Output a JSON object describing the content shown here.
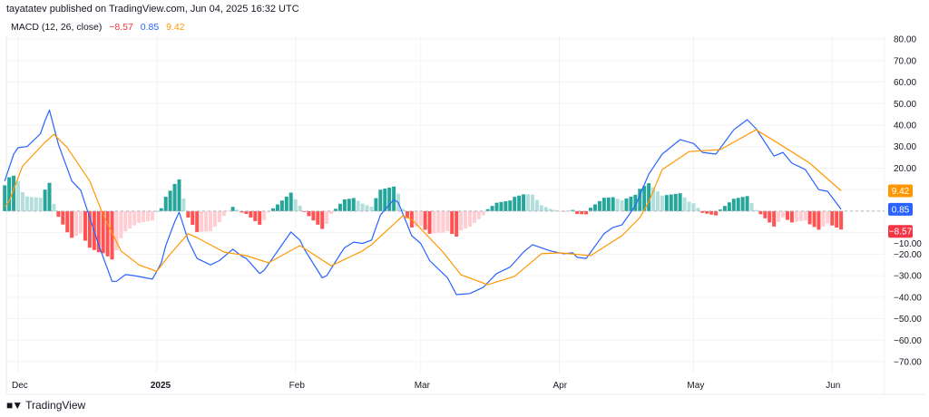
{
  "header": {
    "published": "tayatatev published on TradingView.com, Jun 04, 2025 16:32 UTC"
  },
  "legend": {
    "indicator": "MACD (12, 26, close)",
    "histogram_value": "−8.57",
    "macd_value": "0.85",
    "signal_value": "9.42"
  },
  "brand": {
    "logo_text": "TV",
    "name": "TradingView"
  },
  "chart_data": {
    "type": "line",
    "title": "MACD (12, 26, close)",
    "ylim": [
      -70,
      80
    ],
    "y_ticks": [
      "80.00",
      "70.00",
      "60.00",
      "50.00",
      "40.00",
      "30.00",
      "20.00",
      "−10.00",
      "−20.00",
      "−30.00",
      "−40.00",
      "−50.00",
      "−60.00",
      "−70.00"
    ],
    "y_tick_values": [
      80,
      70,
      60,
      50,
      40,
      30,
      20,
      -10,
      -20,
      -30,
      -40,
      -50,
      -60,
      -70
    ],
    "x_ticks": [
      {
        "label": "Dec",
        "date": "2024-12-01",
        "bold": false
      },
      {
        "label": "2025",
        "date": "2025-01-01",
        "bold": true
      },
      {
        "label": "Feb",
        "date": "2025-02-01",
        "bold": false
      },
      {
        "label": "Mar",
        "date": "2025-03-01",
        "bold": false
      },
      {
        "label": "Apr",
        "date": "2025-04-01",
        "bold": false
      },
      {
        "label": "May",
        "date": "2025-05-01",
        "bold": false
      },
      {
        "label": "Jun",
        "date": "2025-06-01",
        "bold": false
      }
    ],
    "grid": true,
    "zero_line": "dashed",
    "series": [
      {
        "key": "macd",
        "color": "#2962ff",
        "points": [
          [
            "2024-11-28",
            14
          ],
          [
            "2024-11-30",
            26.5
          ],
          [
            "2024-12-01",
            29.5
          ],
          [
            "2024-12-03",
            30
          ],
          [
            "2024-12-06",
            36
          ],
          [
            "2024-12-07",
            42
          ],
          [
            "2024-12-08",
            47
          ],
          [
            "2024-12-10",
            31
          ],
          [
            "2024-12-13",
            14
          ],
          [
            "2024-12-15",
            9.7
          ],
          [
            "2024-12-17",
            -3
          ],
          [
            "2024-12-19",
            -15.6
          ],
          [
            "2024-12-22",
            -32.6
          ],
          [
            "2024-12-23",
            -32.6
          ],
          [
            "2024-12-25",
            -29.5
          ],
          [
            "2024-12-27",
            -30
          ],
          [
            "2024-12-31",
            -31.6
          ],
          [
            "2025-01-01",
            -28
          ],
          [
            "2025-01-02",
            -24
          ],
          [
            "2025-01-03",
            -16
          ],
          [
            "2025-01-05",
            -5
          ],
          [
            "2025-01-06",
            -0.5
          ],
          [
            "2025-01-08",
            -13.5
          ],
          [
            "2025-01-10",
            -22
          ],
          [
            "2025-01-13",
            -25
          ],
          [
            "2025-01-15",
            -23
          ],
          [
            "2025-01-18",
            -17.7
          ],
          [
            "2025-01-20",
            -21
          ],
          [
            "2025-01-21",
            -22
          ],
          [
            "2025-01-24",
            -29
          ],
          [
            "2025-01-25",
            -27.5
          ],
          [
            "2025-01-31",
            -9.7
          ],
          [
            "2025-02-02",
            -13.5
          ],
          [
            "2025-02-03",
            -17.7
          ],
          [
            "2025-02-07",
            -31
          ],
          [
            "2025-02-08",
            -30
          ],
          [
            "2025-02-11",
            -20
          ],
          [
            "2025-02-12",
            -17
          ],
          [
            "2025-02-14",
            -14.4
          ],
          [
            "2025-02-16",
            -15
          ],
          [
            "2025-02-18",
            -13.5
          ],
          [
            "2025-02-20",
            -1.8
          ],
          [
            "2025-02-23",
            5.4
          ],
          [
            "2025-02-24",
            4
          ],
          [
            "2025-02-27",
            -11.4
          ],
          [
            "2025-03-01",
            -15
          ],
          [
            "2025-03-03",
            -23
          ],
          [
            "2025-03-06",
            -29
          ],
          [
            "2025-03-07",
            -31
          ],
          [
            "2025-03-09",
            -38.8
          ],
          [
            "2025-03-12",
            -38.3
          ],
          [
            "2025-03-15",
            -35.4
          ],
          [
            "2025-03-18",
            -29
          ],
          [
            "2025-03-21",
            -26
          ],
          [
            "2025-03-24",
            -19
          ],
          [
            "2025-03-26",
            -15.6
          ],
          [
            "2025-03-30",
            -18.5
          ],
          [
            "2025-04-02",
            -19.8
          ],
          [
            "2025-04-04",
            -19.4
          ],
          [
            "2025-04-05",
            -21.5
          ],
          [
            "2025-04-07",
            -22
          ],
          [
            "2025-04-11",
            -10.5
          ],
          [
            "2025-04-13",
            -7.6
          ],
          [
            "2025-04-15",
            -6.4
          ],
          [
            "2025-04-18",
            2.5
          ],
          [
            "2025-04-21",
            17.2
          ],
          [
            "2025-04-24",
            26.5
          ],
          [
            "2025-04-28",
            33.2
          ],
          [
            "2025-05-01",
            31.5
          ],
          [
            "2025-05-03",
            27.3
          ],
          [
            "2025-05-06",
            26.5
          ],
          [
            "2025-05-10",
            37.8
          ],
          [
            "2025-05-13",
            42.5
          ],
          [
            "2025-05-15",
            38.3
          ],
          [
            "2025-05-19",
            25.6
          ],
          [
            "2025-05-21",
            27.3
          ],
          [
            "2025-05-23",
            22.3
          ],
          [
            "2025-05-26",
            19.3
          ],
          [
            "2025-05-29",
            10
          ],
          [
            "2025-05-31",
            9.2
          ],
          [
            "2025-06-03",
            0.85
          ]
        ]
      },
      {
        "key": "signal",
        "color": "#ff9800",
        "points": [
          [
            "2024-11-28",
            2
          ],
          [
            "2024-11-29",
            4.5
          ],
          [
            "2024-12-02",
            21
          ],
          [
            "2024-12-07",
            32
          ],
          [
            "2024-12-09",
            35.7
          ],
          [
            "2024-12-12",
            29.5
          ],
          [
            "2024-12-17",
            14
          ],
          [
            "2024-12-20",
            -1.7
          ],
          [
            "2024-12-24",
            -18.5
          ],
          [
            "2024-12-28",
            -25
          ],
          [
            "2025-01-01",
            -28
          ],
          [
            "2025-01-04",
            -20
          ],
          [
            "2025-01-08",
            -10.5
          ],
          [
            "2025-01-10",
            -12.3
          ],
          [
            "2025-01-16",
            -19
          ],
          [
            "2025-01-21",
            -20.7
          ],
          [
            "2025-01-26",
            -24
          ],
          [
            "2025-02-02",
            -16
          ],
          [
            "2025-02-09",
            -25.4
          ],
          [
            "2025-02-16",
            -18.5
          ],
          [
            "2025-02-18",
            -15.6
          ],
          [
            "2025-02-25",
            -2.2
          ],
          [
            "2025-02-27",
            -3.8
          ],
          [
            "2025-03-06",
            -19
          ],
          [
            "2025-03-10",
            -29.6
          ],
          [
            "2025-03-16",
            -34.2
          ],
          [
            "2025-03-22",
            -30.3
          ],
          [
            "2025-03-28",
            -19.8
          ],
          [
            "2025-04-01",
            -19.4
          ],
          [
            "2025-04-08",
            -20.7
          ],
          [
            "2025-04-15",
            -11.4
          ],
          [
            "2025-04-19",
            -3
          ],
          [
            "2025-04-21",
            4.2
          ],
          [
            "2025-04-24",
            19.3
          ],
          [
            "2025-04-30",
            27.7
          ],
          [
            "2025-05-07",
            28.6
          ],
          [
            "2025-05-15",
            37.8
          ],
          [
            "2025-05-20",
            31.5
          ],
          [
            "2025-05-27",
            22.3
          ],
          [
            "2025-06-03",
            9.42
          ]
        ]
      }
    ],
    "histogram": {
      "definition": "macd - signal",
      "colors": {
        "pos_rising": "#26a69a",
        "pos_falling": "#b2dfdb",
        "neg_falling": "#ff5252",
        "neg_rising": "#ffcdd2"
      }
    },
    "last_values": [
      {
        "label": "9.42",
        "color": "#ff9800",
        "value": 9.42
      },
      {
        "label": "0.85",
        "color": "#2962ff",
        "value": 0.85
      },
      {
        "label": "−8.57",
        "color": "#f23645",
        "value": -8.57
      }
    ]
  }
}
